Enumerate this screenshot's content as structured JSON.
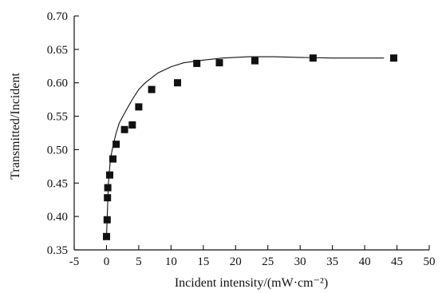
{
  "chart_data": {
    "type": "scatter",
    "title": "",
    "xlabel": "Incident intensity/(mW·cm⁻²)",
    "ylabel": "Transmitted/Incident",
    "xlim": [
      -5,
      50
    ],
    "ylim": [
      0.35,
      0.7
    ],
    "x_ticks": [
      -5,
      0,
      5,
      10,
      15,
      20,
      25,
      30,
      35,
      40,
      45,
      50
    ],
    "y_ticks": [
      0.35,
      0.4,
      0.45,
      0.5,
      0.55,
      0.6,
      0.65,
      0.7
    ],
    "x_tick_labels": [
      "-5",
      "0",
      "5",
      "10",
      "15",
      "20",
      "25",
      "30",
      "35",
      "40",
      "45",
      "50"
    ],
    "y_tick_labels": [
      "0.35",
      "0.40",
      "0.45",
      "0.50",
      "0.55",
      "0.60",
      "0.65",
      "0.70"
    ],
    "grid": false,
    "legend": "none",
    "series": [
      {
        "kind": "scatter",
        "marker": "square",
        "color": "#111111",
        "x": [
          0.0,
          0.1,
          0.15,
          0.2,
          0.5,
          1.0,
          1.5,
          2.8,
          4.0,
          5.0,
          7.0,
          11.0,
          14.0,
          17.5,
          23.0,
          32.0,
          44.5
        ],
        "y": [
          0.37,
          0.395,
          0.428,
          0.443,
          0.462,
          0.486,
          0.508,
          0.53,
          0.537,
          0.564,
          0.59,
          0.6,
          0.629,
          0.63,
          0.633,
          0.637,
          0.637
        ]
      },
      {
        "kind": "line",
        "color": "#111111",
        "x": [
          0.0,
          0.3,
          0.6,
          1.0,
          1.5,
          2.0,
          3.0,
          4.0,
          5.0,
          6.0,
          8.0,
          10.0,
          12.0,
          15.0,
          18.0,
          22.0,
          26.0,
          30.0,
          35.0,
          40.0,
          43.0
        ],
        "y": [
          0.37,
          0.45,
          0.485,
          0.505,
          0.525,
          0.54,
          0.558,
          0.575,
          0.59,
          0.6,
          0.615,
          0.624,
          0.63,
          0.634,
          0.637,
          0.639,
          0.639,
          0.638,
          0.637,
          0.637,
          0.637
        ]
      }
    ]
  }
}
